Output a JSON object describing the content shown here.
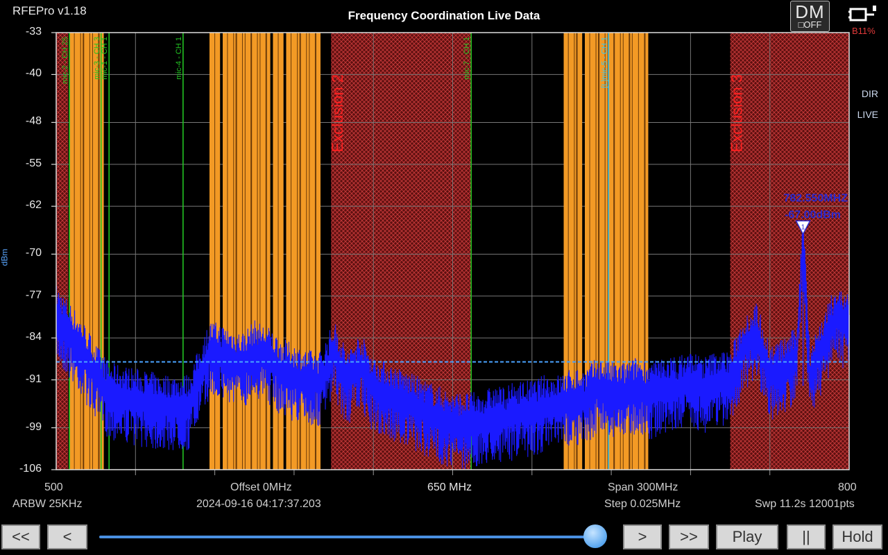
{
  "app": {
    "title": "RFEPro v1.18"
  },
  "header": {
    "title": "Frequency Coordination Live Data",
    "dm_badge": {
      "line1": "DM",
      "line2": "OFF"
    },
    "battery": {
      "icon": "battery-plug-icon",
      "label": "B11%"
    }
  },
  "side_labels": {
    "dir": "DIR",
    "live": "LIVE"
  },
  "info": {
    "arbw": "ARBW 25KHz",
    "offset": "Offset 0MHz",
    "datetime": "2024-09-16 04:17:37.203",
    "center": "650 MHz",
    "span": "Span 300MHz",
    "step": "Step 0.025MHz",
    "sweep": "Swp 11.2s  12001pts"
  },
  "controls": {
    "rewind": "<<",
    "back": "<",
    "forward": ">",
    "fast_forward": ">>",
    "play": "Play",
    "pause": "||",
    "hold": "Hold",
    "slider_position": 0.98
  },
  "colors": {
    "trace": "#1a1aff",
    "occupied": "#f39a25",
    "exclusion": "#8b1a1a",
    "exclusion_label": "#ff2020",
    "mic_green": "#22c322",
    "mic_cyan": "#40c8e8",
    "threshold": "#4aa3ff"
  },
  "chart_data": {
    "type": "line",
    "title": "Frequency Coordination Live Data",
    "xlabel": "",
    "ylabel": "dBm",
    "xlim": [
      500,
      800
    ],
    "ylim": [
      -106,
      -33
    ],
    "x_tick_labels": [
      "500",
      "650 MHz",
      "800"
    ],
    "y_ticks": [
      -33,
      -40,
      -48,
      -55,
      -62,
      -70,
      -77,
      -84,
      -91,
      -99,
      -106
    ],
    "grid": true,
    "threshold_dbm": -88,
    "marker": {
      "id": "1",
      "freq_label": "782.550MHZ",
      "level_label": "-67.00dBm",
      "freq_mhz": 782.55,
      "level_dbm": -67.0
    },
    "exclusion_zones": [
      {
        "label": "",
        "start_mhz": 500,
        "end_mhz": 504.5
      },
      {
        "label": "Exclusion 2",
        "start_mhz": 604,
        "end_mhz": 657
      },
      {
        "label": "Exclusion 3",
        "start_mhz": 755,
        "end_mhz": 800
      }
    ],
    "occupied_bands": [
      {
        "start_mhz": 505,
        "end_mhz": 518
      },
      {
        "start_mhz": 558,
        "end_mhz": 562
      },
      {
        "start_mhz": 563,
        "end_mhz": 581
      },
      {
        "start_mhz": 582,
        "end_mhz": 586
      },
      {
        "start_mhz": 587,
        "end_mhz": 600
      },
      {
        "start_mhz": 692,
        "end_mhz": 699
      },
      {
        "start_mhz": 700,
        "end_mhz": 724
      }
    ],
    "channel_markers": [
      {
        "label": "mic-2 - CH 25",
        "freq_mhz": 505,
        "color": "#22c322"
      },
      {
        "label": "mic-3 - CH 3",
        "freq_mhz": 517,
        "color": "#22c322"
      },
      {
        "label": "mic-1 - CH 1",
        "freq_mhz": 520,
        "color": "#22c322"
      },
      {
        "label": "mic-4 - CH 1",
        "freq_mhz": 548,
        "color": "#22c322"
      },
      {
        "label": "mic-7 - CH 1",
        "freq_mhz": 657,
        "color": "#22c322"
      },
      {
        "label": "[L]mic-5 - CH 1",
        "freq_mhz": 709,
        "color": "#40c8e8"
      }
    ],
    "series": [
      {
        "x": [
          500,
          505,
          510,
          515,
          520,
          530,
          540,
          550,
          558,
          565,
          570,
          575,
          580,
          585,
          590,
          595,
          600,
          605,
          610,
          615,
          620,
          625,
          630,
          635,
          640,
          645,
          650,
          655,
          660,
          665,
          670,
          675,
          680,
          685,
          690,
          695,
          700,
          705,
          710,
          715,
          720,
          725,
          730,
          735,
          740,
          745,
          750,
          755,
          760,
          765,
          770,
          775,
          780,
          782.55,
          785,
          790,
          795,
          800
        ],
        "y": [
          -80,
          -83,
          -86,
          -90,
          -93,
          -94,
          -95,
          -95,
          -86,
          -87,
          -88,
          -86,
          -87,
          -89,
          -90,
          -91,
          -91,
          -86,
          -91,
          -88,
          -92,
          -93,
          -94,
          -95,
          -96,
          -97,
          -98,
          -98,
          -98,
          -97,
          -97,
          -96,
          -96,
          -95,
          -95,
          -94,
          -94,
          -92,
          -93,
          -93,
          -92,
          -93,
          -92,
          -92,
          -91,
          -92,
          -91,
          -91,
          -85,
          -83,
          -90,
          -89,
          -87,
          -67,
          -90,
          -85,
          -80,
          -82
        ]
      }
    ]
  }
}
